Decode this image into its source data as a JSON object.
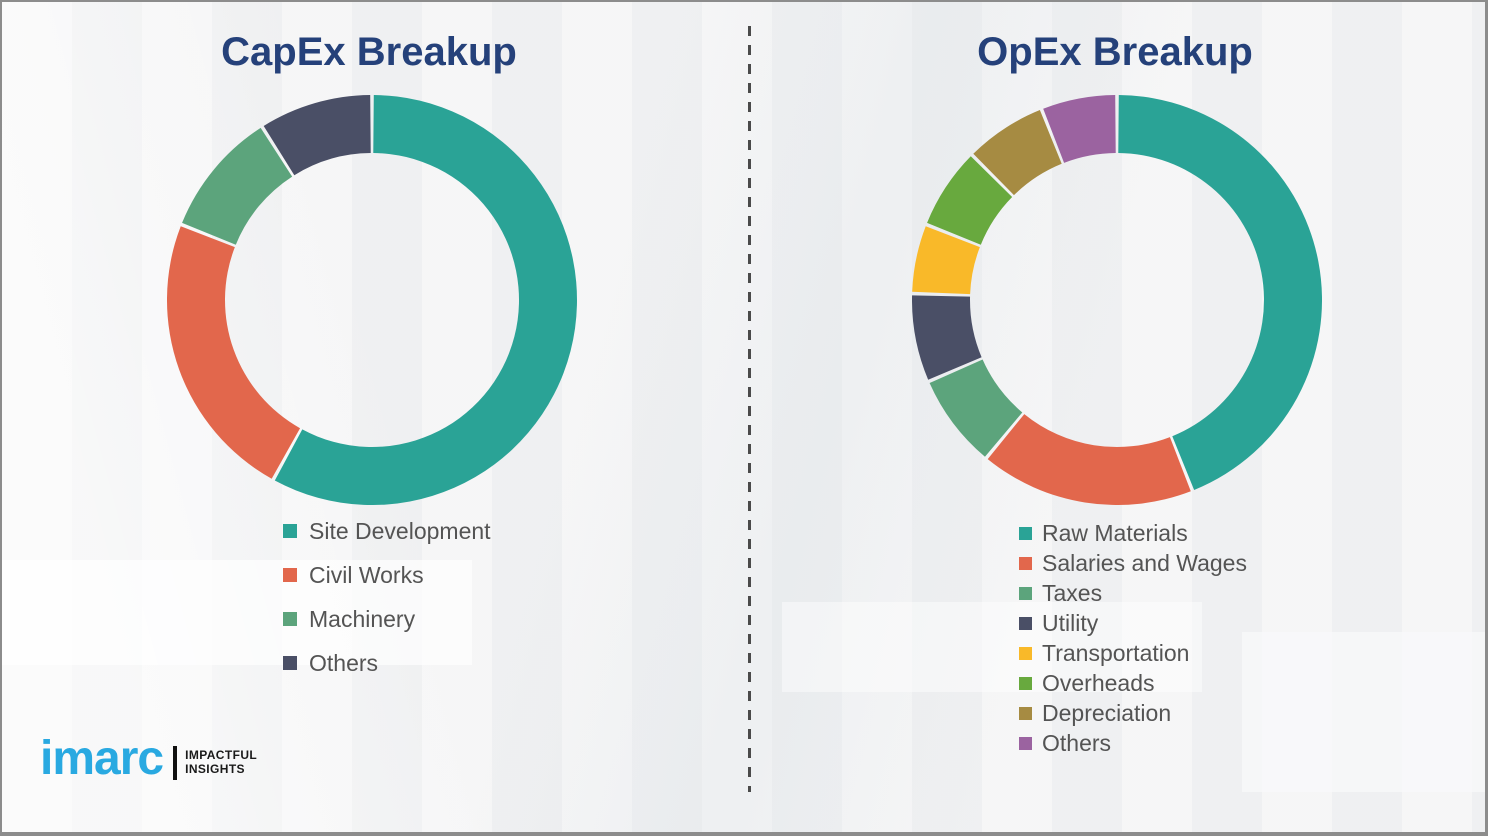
{
  "chart_data": [
    {
      "type": "pie",
      "subtype": "donut",
      "title": "CapEx Breakup",
      "labels": [
        "Site Development",
        "Civil Works",
        "Machinery",
        "Others"
      ],
      "values": [
        58,
        23,
        10,
        9
      ],
      "colors": [
        "#2aa396",
        "#e2674c",
        "#5ca47c",
        "#4a4f66"
      ],
      "units": "percent",
      "start_angle_deg": 0,
      "direction": "clockwise",
      "legend_position": "below-left"
    },
    {
      "type": "pie",
      "subtype": "donut",
      "title": "OpEx Breakup",
      "labels": [
        "Raw Materials",
        "Salaries and Wages",
        "Taxes",
        "Utility",
        "Transportation",
        "Overheads",
        "Depreciation",
        "Others"
      ],
      "values": [
        44,
        17,
        7.5,
        7,
        5.5,
        6.5,
        6.5,
        6
      ],
      "colors": [
        "#2aa396",
        "#e2674c",
        "#5ca47c",
        "#4a4f66",
        "#f9b929",
        "#68a93e",
        "#a68b42",
        "#9b63a0"
      ],
      "units": "percent",
      "start_angle_deg": 0,
      "direction": "clockwise",
      "legend_position": "below-left"
    }
  ],
  "logo": {
    "brand": "imarc",
    "tagline_line1": "IMPACTFUL",
    "tagline_line2": "INSIGHTS",
    "brand_color": "#29a9e1"
  },
  "style": {
    "title_color": "#25417a",
    "legend_text_color": "#545454",
    "background_color": "#f2f2f3",
    "divider_color": "#4a4a4a"
  }
}
